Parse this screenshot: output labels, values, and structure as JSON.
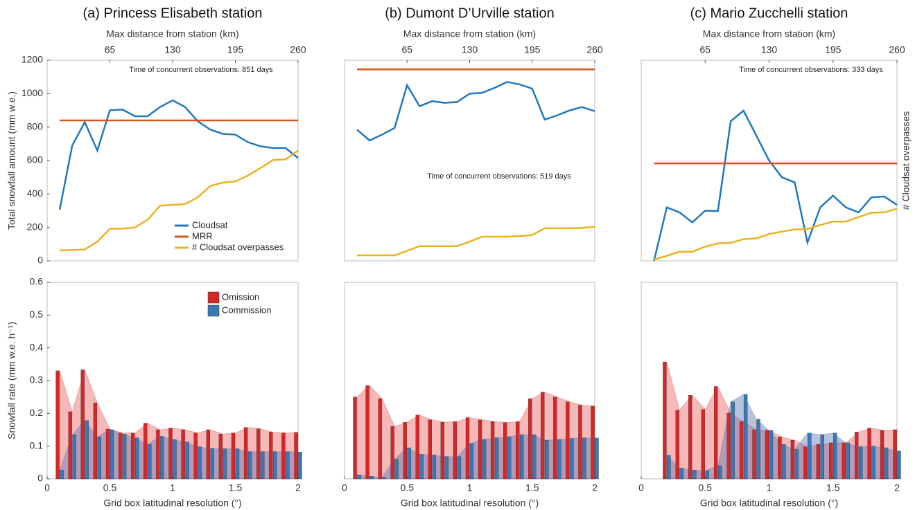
{
  "chart_data": [
    {
      "type": "line",
      "title": "(a) Princess Elisabeth station",
      "x2label": "Max distance from station (km)",
      "x2lim": [
        0,
        260
      ],
      "x2ticks": [
        65,
        130,
        195,
        260
      ],
      "xlim": [
        0,
        2
      ],
      "ylim": [
        0,
        1200
      ],
      "yticks": [
        0,
        200,
        400,
        600,
        800,
        1000,
        1200
      ],
      "ylabel": "Total snowfall amount (mm w.e.)",
      "annotation": "Time of concurrent observations: 851 days",
      "x": [
        0.1,
        0.2,
        0.3,
        0.4,
        0.5,
        0.6,
        0.7,
        0.8,
        0.9,
        1.0,
        1.1,
        1.2,
        1.3,
        1.4,
        1.5,
        1.6,
        1.7,
        1.8,
        1.9,
        2.0
      ],
      "series": [
        {
          "name": "Cloudsat",
          "color": "#1f77c0",
          "values": [
            306,
            690,
            830,
            660,
            900,
            905,
            865,
            865,
            920,
            960,
            920,
            835,
            785,
            760,
            755,
            710,
            685,
            675,
            675,
            615
          ]
        },
        {
          "name": "MRR",
          "color": "#d95319",
          "values": [
            840,
            840,
            840,
            840,
            840,
            840,
            840,
            840,
            840,
            840,
            840,
            840,
            840,
            840,
            840,
            840,
            840,
            840,
            840,
            840
          ]
        },
        {
          "name": "# Cloudsat overpasses",
          "color": "#edb120",
          "values": [
            62,
            65,
            68,
            115,
            192,
            193,
            200,
            245,
            330,
            335,
            340,
            380,
            448,
            468,
            475,
            510,
            555,
            603,
            607,
            660
          ]
        }
      ]
    },
    {
      "type": "line",
      "title": "(b) Dumont D’Urville station",
      "x2label": "Max distance from station (km)",
      "x2lim": [
        0,
        260
      ],
      "x2ticks": [
        65,
        130,
        195,
        260
      ],
      "xlim": [
        0,
        2
      ],
      "ylim": [
        0,
        1200
      ],
      "annotation": "Time of concurrent observations: 519 days",
      "x": [
        0.1,
        0.2,
        0.3,
        0.4,
        0.5,
        0.6,
        0.7,
        0.8,
        0.9,
        1.0,
        1.1,
        1.2,
        1.3,
        1.4,
        1.5,
        1.6,
        1.7,
        1.8,
        1.9,
        2.0
      ],
      "series": [
        {
          "color": "#1f77c0",
          "values": [
            785,
            720,
            755,
            795,
            1050,
            925,
            955,
            945,
            950,
            1000,
            1005,
            1035,
            1070,
            1055,
            1030,
            845,
            870,
            900,
            920,
            895
          ]
        },
        {
          "color": "#d95319",
          "values": [
            1145,
            1145,
            1145,
            1145,
            1145,
            1145,
            1145,
            1145,
            1145,
            1145,
            1145,
            1145,
            1145,
            1145,
            1145,
            1145,
            1145,
            1145,
            1145,
            1145
          ]
        },
        {
          "color": "#edb120",
          "values": [
            33,
            33,
            33,
            33,
            60,
            88,
            88,
            88,
            88,
            115,
            145,
            145,
            145,
            148,
            155,
            195,
            195,
            195,
            197,
            205
          ]
        }
      ]
    },
    {
      "type": "line",
      "title": "(c) Mario Zucchelli station",
      "x2label": "Max distance from station (km)",
      "x2lim": [
        0,
        260
      ],
      "x2ticks": [
        65,
        130,
        195,
        260
      ],
      "xlim": [
        0,
        2
      ],
      "ylim": [
        0,
        1200
      ],
      "y2label": "# Cloudsat overpasses",
      "annotation": "Time of concurrent observations: 333 days",
      "x": [
        0.1,
        0.2,
        0.3,
        0.4,
        0.5,
        0.6,
        0.7,
        0.8,
        0.9,
        1.0,
        1.1,
        1.2,
        1.3,
        1.4,
        1.5,
        1.6,
        1.7,
        1.8,
        1.9,
        2.0
      ],
      "series": [
        {
          "color": "#1f77c0",
          "values": [
            0,
            320,
            290,
            230,
            300,
            298,
            835,
            898,
            750,
            600,
            500,
            470,
            110,
            320,
            390,
            320,
            290,
            380,
            385,
            335
          ]
        },
        {
          "color": "#d95319",
          "values": [
            583,
            583,
            583,
            583,
            583,
            583,
            583,
            583,
            583,
            583,
            583,
            583,
            583,
            583,
            583,
            583,
            583,
            583,
            583,
            583
          ]
        },
        {
          "color": "#edb120",
          "values": [
            8,
            30,
            55,
            55,
            85,
            105,
            108,
            130,
            135,
            160,
            175,
            188,
            190,
            215,
            235,
            235,
            262,
            288,
            290,
            312
          ]
        }
      ]
    },
    {
      "type": "bar",
      "xlabel": "Grid box latitudinal resolution (°)",
      "xlim": [
        0,
        2
      ],
      "xticks": [
        0,
        0.5,
        1,
        1.5,
        2
      ],
      "ylim": [
        0,
        0.6
      ],
      "yticks": [
        0,
        0.1,
        0.2,
        0.3,
        0.4,
        0.5,
        0.6
      ],
      "ylabel": "Snowfall rate (mm w.e. h⁻¹)",
      "x": [
        0.1,
        0.2,
        0.3,
        0.4,
        0.5,
        0.6,
        0.7,
        0.8,
        0.9,
        1.0,
        1.1,
        1.2,
        1.3,
        1.4,
        1.5,
        1.6,
        1.7,
        1.8,
        1.9,
        2.0
      ],
      "series": [
        {
          "name": "Omission",
          "color": "#d62728",
          "values": [
            0.33,
            0.205,
            0.333,
            0.232,
            0.152,
            0.14,
            0.14,
            0.17,
            0.15,
            0.155,
            0.15,
            0.14,
            0.15,
            0.137,
            0.14,
            0.157,
            0.153,
            0.143,
            0.14,
            0.142
          ]
        },
        {
          "name": "Commission",
          "color": "#3a78b5",
          "values": [
            0.027,
            0.135,
            0.178,
            0.128,
            0.15,
            0.137,
            0.125,
            0.105,
            0.13,
            0.12,
            0.113,
            0.098,
            0.093,
            0.092,
            0.092,
            0.083,
            0.083,
            0.083,
            0.083,
            0.082
          ]
        }
      ]
    },
    {
      "type": "bar",
      "xlabel": "Grid box latitudinal resolution (°)",
      "xlim": [
        0,
        2
      ],
      "xticks": [
        0,
        0.5,
        1,
        1.5,
        2
      ],
      "ylim": [
        0,
        0.6
      ],
      "x": [
        0.1,
        0.2,
        0.3,
        0.4,
        0.5,
        0.6,
        0.7,
        0.8,
        0.9,
        1.0,
        1.1,
        1.2,
        1.3,
        1.4,
        1.5,
        1.6,
        1.7,
        1.8,
        1.9,
        2.0
      ],
      "series": [
        {
          "color": "#d62728",
          "values": [
            0.25,
            0.285,
            0.245,
            0.16,
            0.173,
            0.195,
            0.18,
            0.173,
            0.175,
            0.187,
            0.18,
            0.175,
            0.172,
            0.175,
            0.245,
            0.265,
            0.25,
            0.235,
            0.225,
            0.222
          ]
        },
        {
          "color": "#3a78b5",
          "values": [
            0.012,
            0.008,
            0.005,
            0.06,
            0.095,
            0.075,
            0.073,
            0.068,
            0.068,
            0.108,
            0.12,
            0.125,
            0.128,
            0.135,
            0.135,
            0.118,
            0.12,
            0.123,
            0.125,
            0.125
          ]
        }
      ]
    },
    {
      "type": "bar",
      "xlabel": "Grid box latitudinal resolution (°)",
      "xlim": [
        0,
        2
      ],
      "xticks": [
        0,
        0.5,
        1,
        1.5,
        2
      ],
      "ylim": [
        0,
        0.6
      ],
      "x": [
        0.2,
        0.3,
        0.4,
        0.5,
        0.6,
        0.7,
        0.8,
        0.9,
        1.0,
        1.1,
        1.2,
        1.3,
        1.4,
        1.5,
        1.6,
        1.7,
        1.8,
        1.9,
        2.0
      ],
      "series": [
        {
          "color": "#d62728",
          "values": [
            0.357,
            0.21,
            0.255,
            0.212,
            0.282,
            0.2,
            0.175,
            0.15,
            0.148,
            0.128,
            0.118,
            0.098,
            0.105,
            0.11,
            0.11,
            0.143,
            0.155,
            0.148,
            0.15
          ]
        },
        {
          "color": "#3a78b5",
          "values": [
            0.072,
            0.033,
            0.027,
            0.025,
            0.04,
            0.235,
            0.258,
            0.182,
            0.148,
            0.105,
            0.09,
            0.14,
            0.135,
            0.14,
            0.11,
            0.098,
            0.1,
            0.095,
            0.085
          ]
        }
      ]
    }
  ]
}
